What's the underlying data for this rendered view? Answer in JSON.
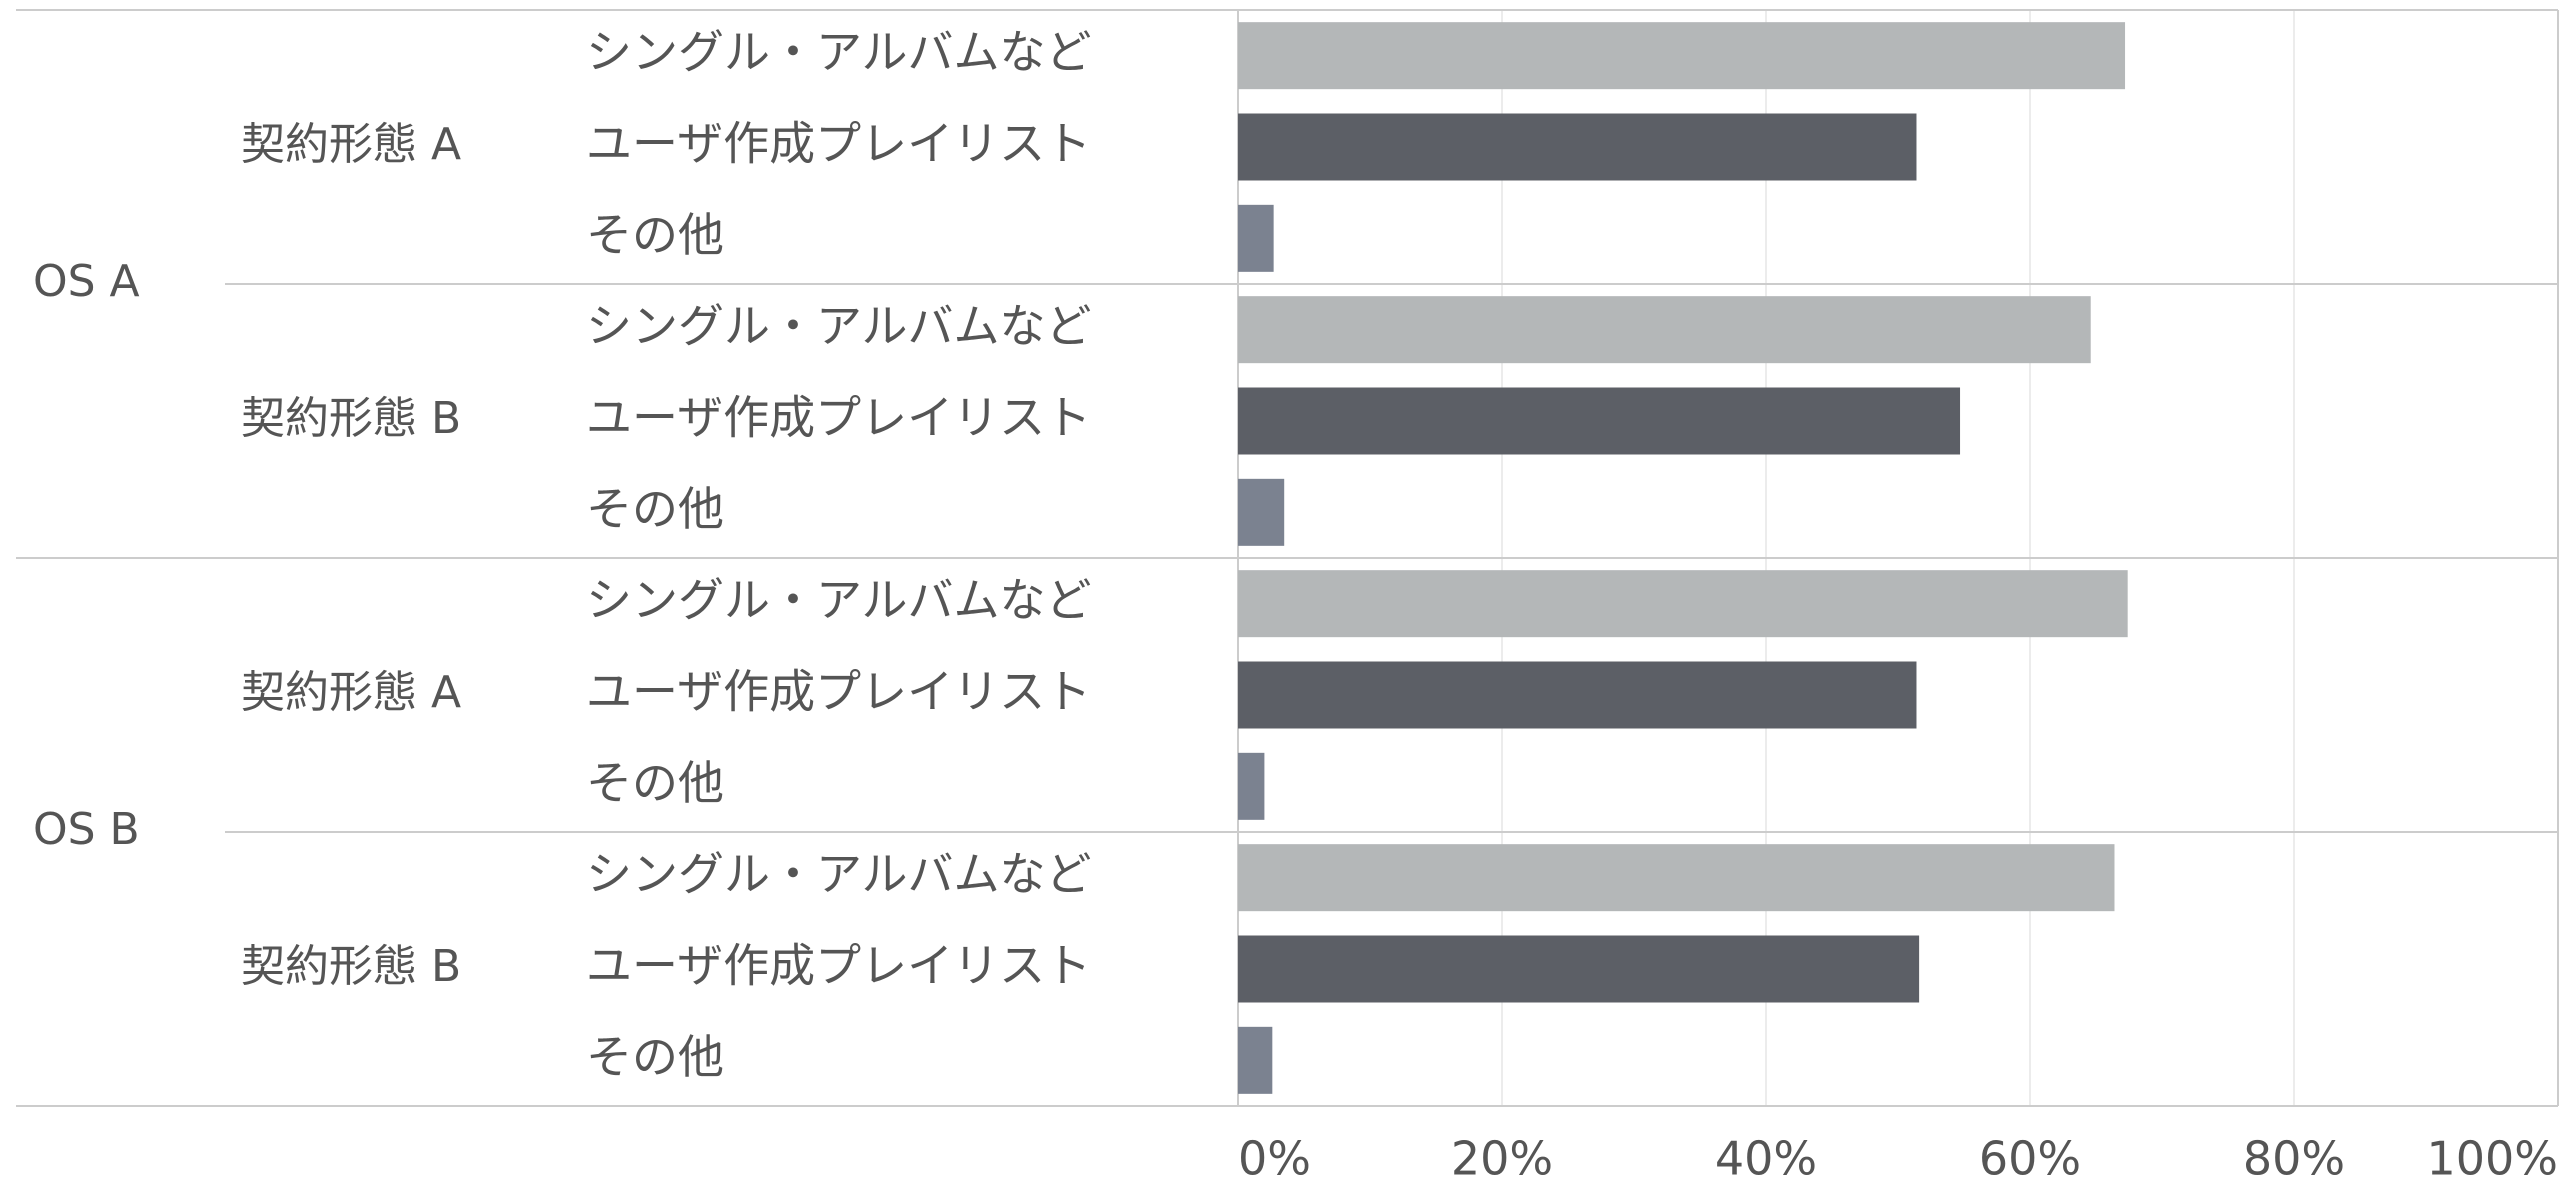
{
  "chart_data": {
    "type": "bar",
    "colors": [
      "#b4b7b8",
      "#5c5f66",
      "#7b8290"
    ],
    "xlim": [
      0,
      100
    ],
    "xticks": [
      {
        "value": 0,
        "label": "0%"
      },
      {
        "value": 20,
        "label": "20%"
      },
      {
        "value": 40,
        "label": "40%"
      },
      {
        "value": 60,
        "label": "60%"
      },
      {
        "value": 80,
        "label": "80%"
      },
      {
        "value": 100,
        "label": "100%"
      }
    ],
    "grid": true,
    "groups": [
      {
        "label": "OS A",
        "subgroups": [
          {
            "label": "契約形態 A",
            "categories": [
              "シングル・アルバムなど",
              "ユーザ作成プレイリスト",
              "その他"
            ],
            "values": [
              67.2,
              51.4,
              2.7
            ]
          },
          {
            "label": "契約形態 B",
            "categories": [
              "シングル・アルバムなど",
              "ユーザ作成プレイリスト",
              "その他"
            ],
            "values": [
              64.6,
              54.7,
              3.5
            ]
          }
        ]
      },
      {
        "label": "OS B",
        "subgroups": [
          {
            "label": "契約形態 A",
            "categories": [
              "シングル・アルバムなど",
              "ユーザ作成プレイリスト",
              "その他"
            ],
            "values": [
              67.4,
              51.4,
              2.0
            ]
          },
          {
            "label": "契約形態 B",
            "categories": [
              "シングル・アルバムなど",
              "ユーザ作成プレイリスト",
              "その他"
            ],
            "values": [
              66.4,
              51.6,
              2.6
            ]
          }
        ]
      }
    ]
  }
}
